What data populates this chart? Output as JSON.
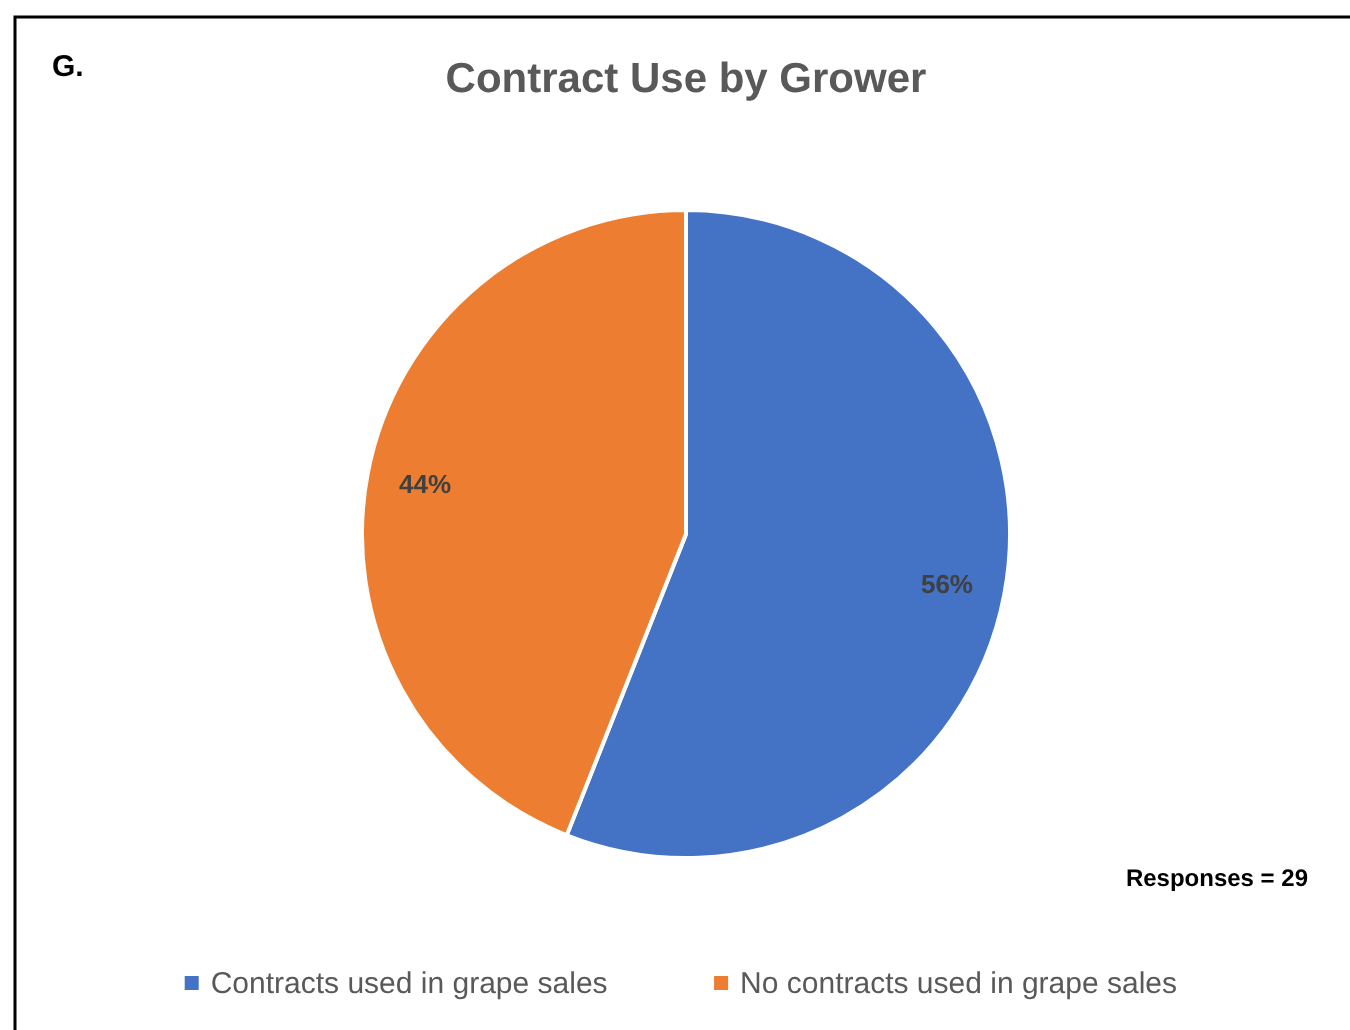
{
  "chart_data": {
    "type": "pie",
    "title": "Contract Use by Grower",
    "categories": [
      "Contracts used in grape sales",
      "No contracts used in grape sales"
    ],
    "values": [
      56,
      44
    ],
    "colors": [
      "#4472c4",
      "#ed7d31"
    ],
    "value_labels": [
      "56%",
      "44%"
    ],
    "legend": "bottom",
    "annotations": [
      "G.",
      "Responses = 29"
    ]
  }
}
